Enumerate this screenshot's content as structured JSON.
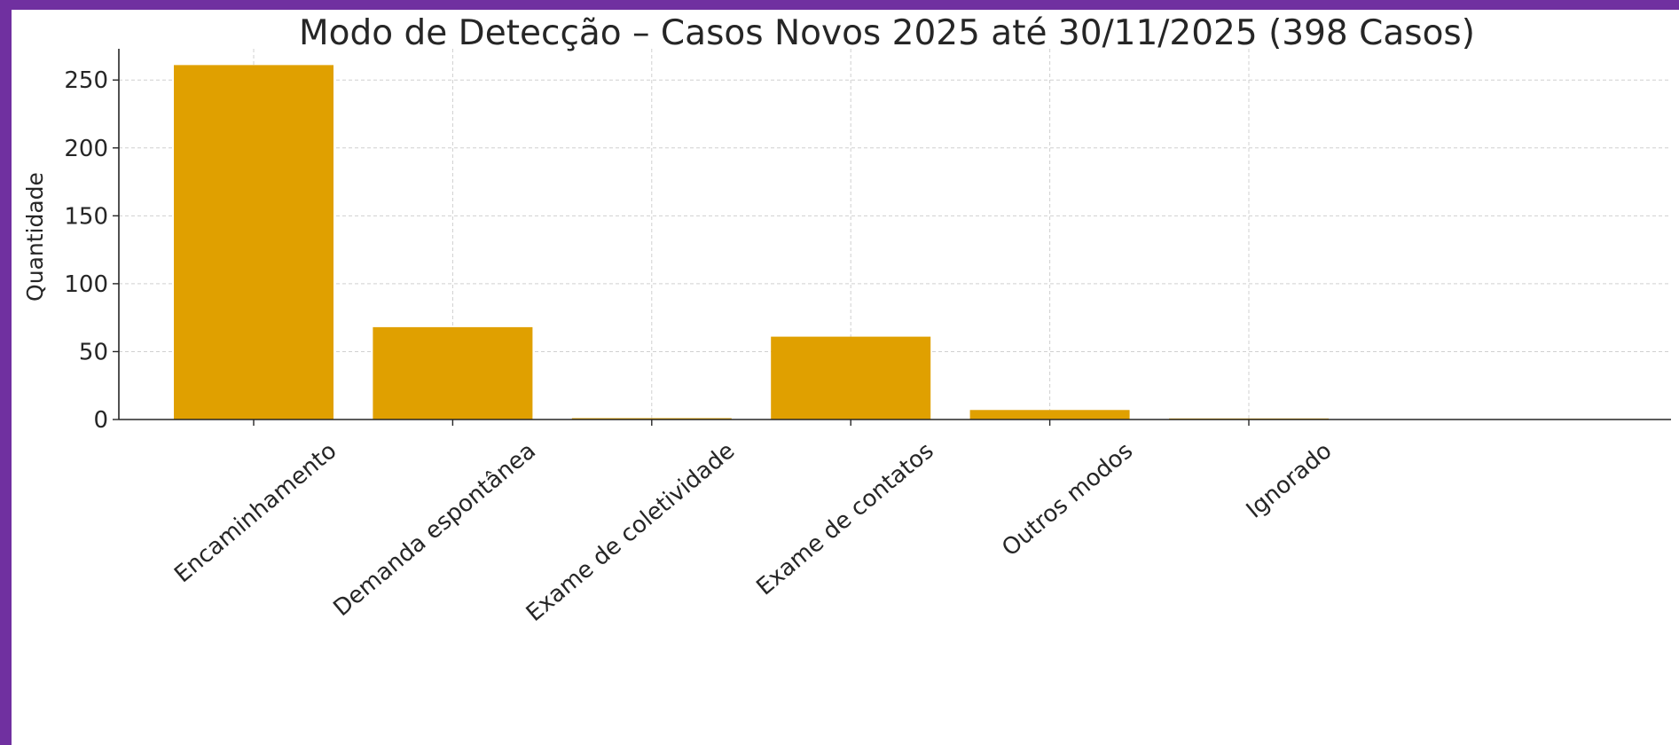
{
  "colors": {
    "background_border": "#7030A0",
    "bar": "#E0A000"
  },
  "chart_data": {
    "type": "bar",
    "title": "Modo de Detecção – Casos Novos 2025 até 30/11/2025 (398 Casos)",
    "xlabel": "",
    "ylabel": "Quantidade",
    "categories": [
      "Encaminhamento",
      "Demanda espontânea",
      "Exame de coletividade",
      "Exame de contatos",
      "Outros modos",
      "Ignorado"
    ],
    "values": [
      261,
      68,
      1,
      61,
      7,
      0
    ],
    "ylim": [
      0,
      273
    ],
    "yticks": [
      0,
      50,
      100,
      150,
      200,
      250
    ],
    "grid": true,
    "legend": "none"
  }
}
